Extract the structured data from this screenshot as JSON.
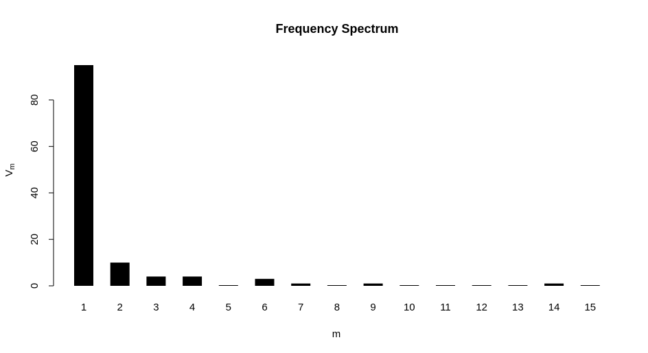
{
  "chart_data": {
    "type": "bar",
    "title": "Frequency Spectrum",
    "xlabel": "m",
    "ylabel": {
      "main": "V",
      "sub": "m"
    },
    "categories": [
      "1",
      "2",
      "3",
      "4",
      "5",
      "6",
      "7",
      "8",
      "9",
      "10",
      "11",
      "12",
      "13",
      "14",
      "15"
    ],
    "values": [
      95,
      10,
      4,
      4,
      0,
      3,
      1,
      0,
      1,
      0,
      0,
      0,
      0,
      1,
      0
    ],
    "ylim": [
      0,
      95
    ],
    "yticks": [
      0,
      20,
      40,
      60,
      80
    ],
    "grid": false,
    "bar_color": "#000000"
  }
}
